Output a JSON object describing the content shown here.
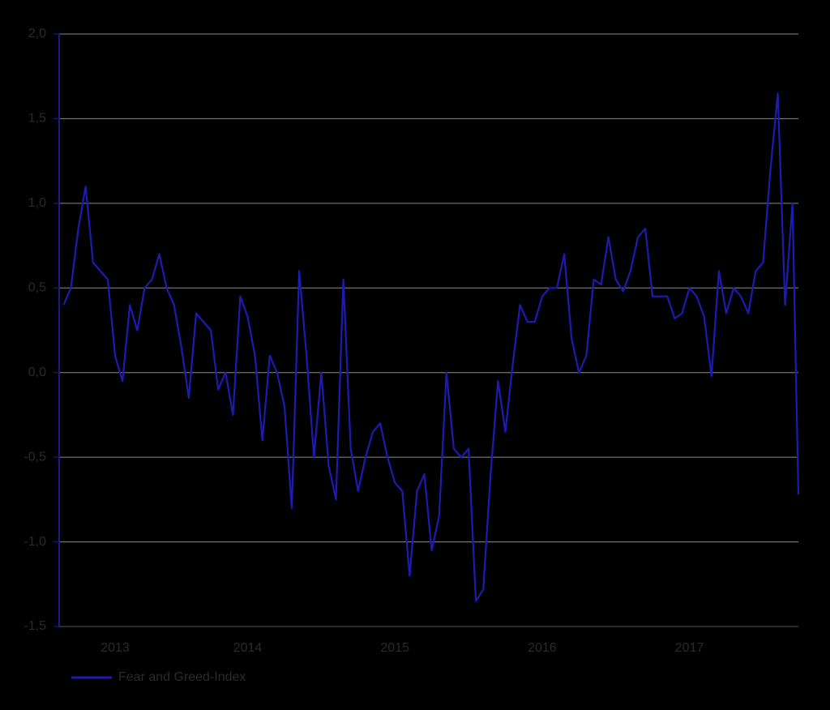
{
  "chart_data": {
    "type": "line",
    "x": [
      2013.25,
      2013.3,
      2013.35,
      2013.4,
      2013.45,
      2013.5,
      2013.55,
      2013.6,
      2013.65,
      2013.7,
      2013.75,
      2013.8,
      2013.85,
      2013.9,
      2013.95,
      2014.0,
      2014.05,
      2014.1,
      2014.15,
      2014.2,
      2014.25,
      2014.3,
      2014.35,
      2014.4,
      2014.45,
      2014.5,
      2014.55,
      2014.6,
      2014.65,
      2014.7,
      2014.75,
      2014.8,
      2014.85,
      2014.9,
      2014.95,
      2015.0,
      2015.05,
      2015.1,
      2015.15,
      2015.2,
      2015.25,
      2015.3,
      2015.35,
      2015.4,
      2015.45,
      2015.5,
      2015.55,
      2015.6,
      2015.65,
      2015.7,
      2015.75,
      2015.8,
      2015.85,
      2015.9,
      2015.95,
      2016.0,
      2016.05,
      2016.1,
      2016.15,
      2016.2,
      2016.25,
      2016.3,
      2016.35,
      2016.4,
      2016.45,
      2016.5,
      2016.55,
      2016.6,
      2016.65,
      2016.7,
      2016.75,
      2016.8,
      2016.85,
      2016.9,
      2016.95,
      2017.0,
      2017.05,
      2017.1,
      2017.15,
      2017.2,
      2017.25,
      2017.3,
      2017.35,
      2017.4,
      2017.45,
      2017.5,
      2017.55,
      2017.6,
      2017.65,
      2017.7,
      2017.75,
      2017.8,
      2017.85,
      2017.9,
      2017.95,
      2018.0,
      2018.05,
      2018.1,
      2018.15,
      2018.2,
      2018.24
    ],
    "series": [
      {
        "name": "Fear and Greed-Index",
        "color": "#1c1cb0",
        "values": [
          0.4,
          0.5,
          0.85,
          1.1,
          0.65,
          0.6,
          0.55,
          0.1,
          -0.05,
          0.4,
          0.25,
          0.5,
          0.55,
          0.7,
          0.5,
          0.4,
          0.15,
          -0.15,
          0.35,
          0.3,
          0.25,
          -0.1,
          0.0,
          -0.25,
          0.45,
          0.33,
          0.1,
          -0.4,
          0.1,
          0.0,
          -0.2,
          -0.8,
          0.6,
          0.1,
          -0.5,
          0.0,
          -0.55,
          -0.75,
          0.55,
          -0.45,
          -0.7,
          -0.5,
          -0.35,
          -0.3,
          -0.5,
          -0.65,
          -0.7,
          -1.2,
          -0.7,
          -0.6,
          -1.05,
          -0.85,
          0.0,
          -0.45,
          -0.5,
          -0.45,
          -1.35,
          -1.28,
          -0.6,
          -0.05,
          -0.35,
          0.05,
          0.4,
          0.3,
          0.3,
          0.45,
          0.5,
          0.5,
          0.7,
          0.2,
          0.0,
          0.1,
          0.55,
          0.52,
          0.8,
          0.55,
          0.48,
          0.6,
          0.8,
          0.85,
          0.45,
          0.45,
          0.45,
          0.32,
          0.35,
          0.5,
          0.45,
          0.33,
          -0.02,
          0.6,
          0.35,
          0.5,
          0.45,
          0.35,
          0.6,
          0.65,
          1.2,
          1.65,
          0.4,
          1.0,
          -0.72
        ]
      }
    ],
    "xlim": [
      2013.22,
      2018.24
    ],
    "xticks": [
      {
        "value": 2013.6,
        "label": "2013"
      },
      {
        "value": 2014.5,
        "label": "2014"
      },
      {
        "value": 2015.5,
        "label": "2015"
      },
      {
        "value": 2016.5,
        "label": "2016"
      },
      {
        "value": 2017.5,
        "label": "2017"
      }
    ],
    "ylim": [
      -1.5,
      2.0
    ],
    "yticks": [
      {
        "value": -1.5,
        "label": "-1,5"
      },
      {
        "value": -1.0,
        "label": "-1,0"
      },
      {
        "value": -0.5,
        "label": "-0,5"
      },
      {
        "value": 0,
        "label": "0,0"
      },
      {
        "value": 0.5,
        "label": "0,5"
      },
      {
        "value": 1.0,
        "label": "1,0"
      },
      {
        "value": 1.5,
        "label": "1,5"
      },
      {
        "value": 2.0,
        "label": "2,0"
      }
    ],
    "grid": true,
    "legend": "bottom-left"
  }
}
